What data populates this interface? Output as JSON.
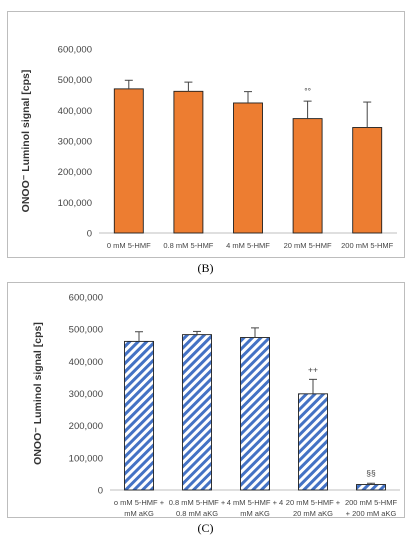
{
  "chart_data": [
    {
      "type": "bar",
      "panel_label": "(B)",
      "ylabel": "ONOO⁻ Luminol signal [cps]",
      "ylim": [
        0,
        600000
      ],
      "yticks": [
        "0",
        "100,000",
        "200,000",
        "300,000",
        "400,000",
        "500,000",
        "600,000"
      ],
      "categories": [
        [
          "0 mM 5-HMF"
        ],
        [
          "0.8 mM 5-HMF"
        ],
        [
          "4 mM 5-HMF"
        ],
        [
          "20 mM 5-HMF"
        ],
        [
          "200 mM 5-HMF"
        ]
      ],
      "values": [
        470000,
        462000,
        424000,
        373000,
        344000
      ],
      "errors": [
        28000,
        30000,
        37000,
        57000,
        83000
      ],
      "annotations": [
        "",
        "",
        "",
        "°°",
        ""
      ],
      "bar_color": "#ed7d31",
      "bar_pattern": "solid",
      "grid": false
    },
    {
      "type": "bar",
      "panel_label": "(C)",
      "ylabel": "ONOO⁻ Luminol signal [cps]",
      "ylim": [
        0,
        600000
      ],
      "yticks": [
        "0",
        "100,000",
        "200,000",
        "300,000",
        "400,000",
        "500,000",
        "600,000"
      ],
      "categories": [
        [
          "o mM 5-HMF +",
          "mM aKG"
        ],
        [
          "0.8 mM 5-HMF +",
          "0.8 mM aKG"
        ],
        [
          "4 mM 5-HMF + 4",
          "mM aKG"
        ],
        [
          "20 mM 5-HMF +",
          "20 mM aKG"
        ],
        [
          "200 mM 5-HMF",
          "+ 200 mM aKG"
        ]
      ],
      "values": [
        462000,
        483000,
        474000,
        299000,
        17000
      ],
      "errors": [
        30000,
        10000,
        30000,
        45000,
        4000
      ],
      "annotations": [
        "",
        "",
        "",
        "++",
        "§§"
      ],
      "bar_color": "#4472c4",
      "bar_pattern": "diagonal-stripes",
      "grid": false
    }
  ]
}
